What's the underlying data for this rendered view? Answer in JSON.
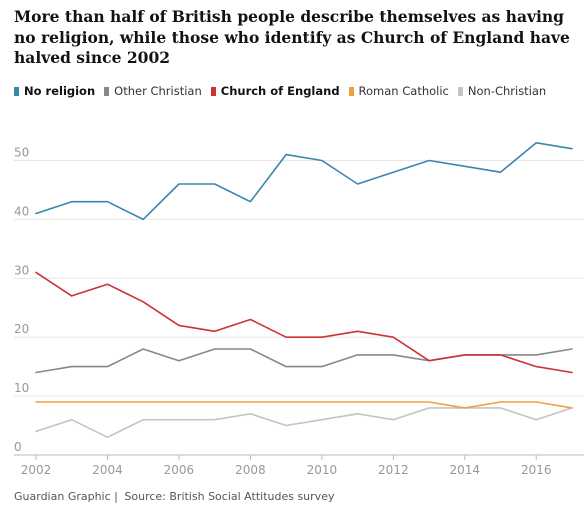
{
  "header": {
    "title": "More than half of British people describe themselves as having no religion, while those who identify as Church of England have halved since 2002"
  },
  "colors": {
    "no_religion": "#3a87ad",
    "other_christian": "#888888",
    "church_of_england": "#cc3333",
    "roman_catholic": "#f0a040",
    "non_christian": "#c4c4c4",
    "grid": "#e6e6e6",
    "axis_text": "#999999"
  },
  "footer": {
    "credit": "Guardian Graphic",
    "separator": "|",
    "source": "Source: British Social Attitudes survey"
  },
  "chart_data": {
    "type": "line",
    "title": "More than half of British people describe themselves as having no religion, while those who identify as Church of England have halved since 2002",
    "xlabel": "",
    "ylabel": "",
    "x": [
      2002,
      2003,
      2004,
      2005,
      2006,
      2007,
      2008,
      2009,
      2010,
      2011,
      2012,
      2013,
      2014,
      2015,
      2016,
      2017
    ],
    "xlim": [
      2002,
      2017
    ],
    "ylim": [
      0,
      55
    ],
    "x_ticks": [
      2002,
      2004,
      2006,
      2008,
      2010,
      2012,
      2014,
      2016
    ],
    "x_tick_labels": [
      "2002",
      "2004",
      "2006",
      "2008",
      "2010",
      "2012",
      "2014",
      "2016"
    ],
    "y_ticks": [
      0,
      10,
      20,
      30,
      40,
      50
    ],
    "y_tick_labels": [
      "0",
      "10",
      "20",
      "30",
      "40",
      "50"
    ],
    "grid": true,
    "legend_position": "top-left",
    "series": [
      {
        "name": "No religion",
        "key": "no_religion",
        "bold": true,
        "values": [
          41,
          43,
          43,
          40,
          46,
          46,
          43,
          51,
          50,
          46,
          48,
          50,
          49,
          48,
          53,
          52
        ]
      },
      {
        "name": "Other Christian",
        "key": "other_christian",
        "bold": false,
        "values": [
          14,
          15,
          15,
          18,
          16,
          18,
          18,
          15,
          15,
          17,
          17,
          16,
          17,
          17,
          17,
          18
        ]
      },
      {
        "name": "Church of England",
        "key": "church_of_england",
        "bold": true,
        "values": [
          31,
          27,
          29,
          26,
          22,
          21,
          23,
          20,
          20,
          21,
          20,
          16,
          17,
          17,
          15,
          14
        ]
      },
      {
        "name": "Roman Catholic",
        "key": "roman_catholic",
        "bold": false,
        "values": [
          9,
          9,
          9,
          9,
          9,
          9,
          9,
          9,
          9,
          9,
          9,
          9,
          8,
          9,
          9,
          8
        ]
      },
      {
        "name": "Non-Christian",
        "key": "non_christian",
        "bold": false,
        "values": [
          4,
          6,
          3,
          6,
          6,
          6,
          7,
          5,
          6,
          7,
          6,
          8,
          8,
          8,
          6,
          8
        ]
      }
    ]
  }
}
